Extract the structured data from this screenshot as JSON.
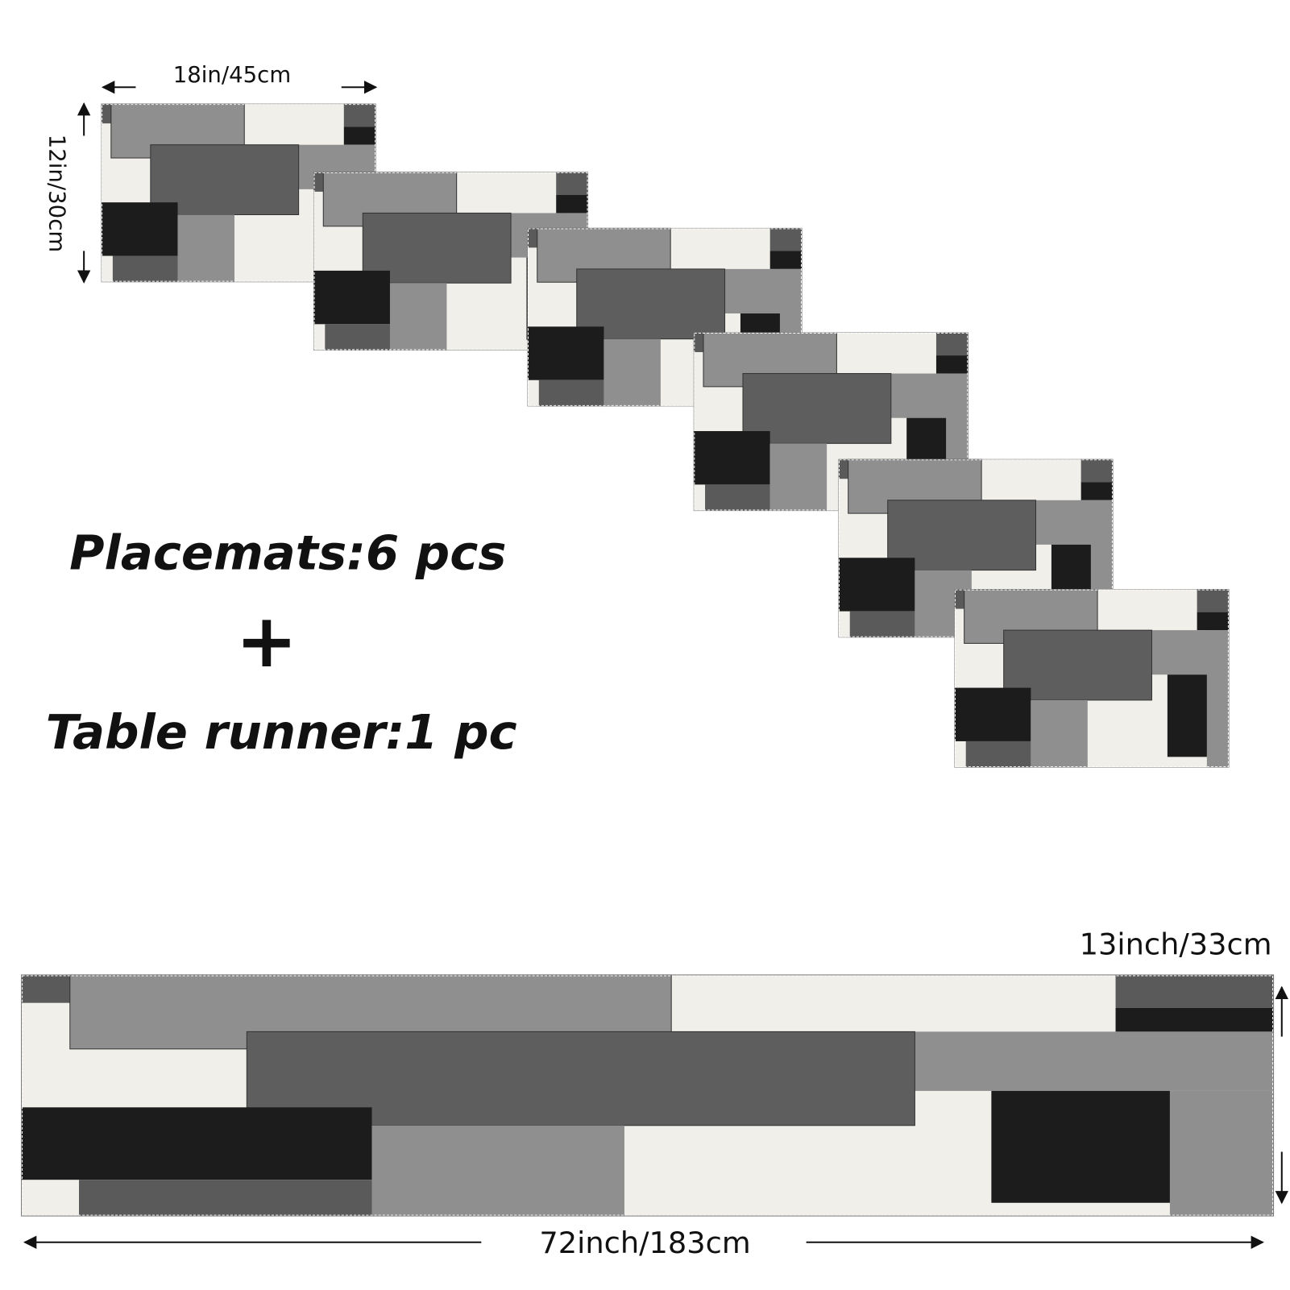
{
  "placemat": {
    "width_label": "18in/45cm",
    "height_label": "12in/30cm"
  },
  "headline": {
    "placemats": "Placemats:6 pcs",
    "plus": "+",
    "runner": "Table runner:1 pc"
  },
  "runner": {
    "height_label": "13inch/33cm",
    "width_label": "72inch/183cm"
  }
}
